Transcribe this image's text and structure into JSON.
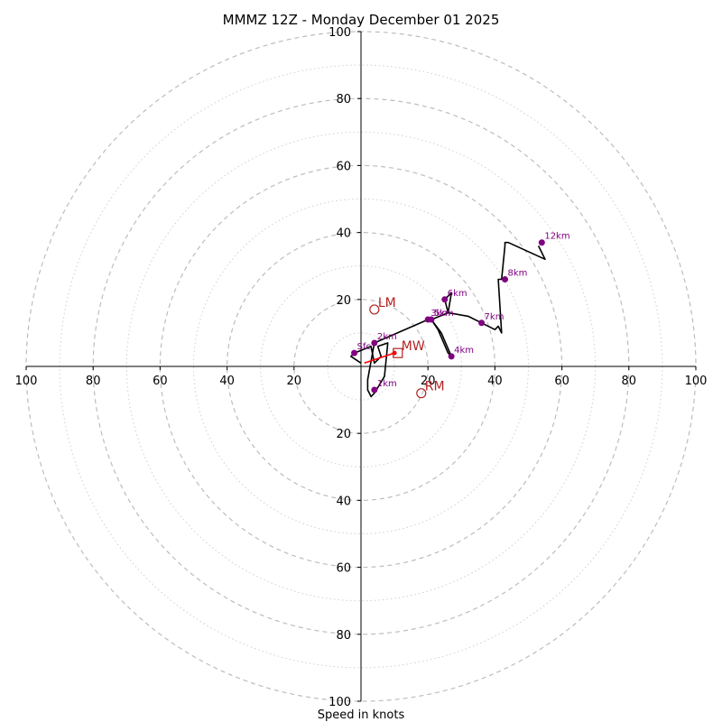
{
  "chart_data": {
    "type": "hodograph",
    "title": "MMMZ 12Z - Monday December 01 2025",
    "xlabel": "Speed in knots",
    "units": "knots",
    "max_speed": 100,
    "ring_labels": [
      "20",
      "40",
      "60",
      "80",
      "100"
    ],
    "axis_ticks": {
      "left": [
        "100",
        "80",
        "60",
        "40",
        "20"
      ],
      "right": [
        "20",
        "40",
        "60",
        "80",
        "100"
      ],
      "top": [
        "100",
        "80",
        "60",
        "40",
        "20"
      ],
      "bottom": [
        "20",
        "40",
        "60",
        "80",
        "100"
      ]
    },
    "trace": [
      [
        0,
        1
      ],
      [
        -3,
        3
      ],
      [
        -2,
        4
      ],
      [
        3,
        6
      ],
      [
        4,
        1
      ],
      [
        6,
        3
      ],
      [
        5,
        6
      ],
      [
        8,
        7
      ],
      [
        7,
        -3
      ],
      [
        4,
        -8
      ],
      [
        3,
        -9
      ],
      [
        2,
        -7
      ],
      [
        2,
        -4
      ],
      [
        4,
        7
      ],
      [
        20,
        14
      ],
      [
        21,
        14
      ],
      [
        24,
        10
      ],
      [
        27,
        3
      ],
      [
        26,
        4
      ],
      [
        23,
        11
      ],
      [
        21,
        14
      ],
      [
        26,
        16
      ],
      [
        25,
        20
      ],
      [
        27,
        22
      ],
      [
        26,
        16
      ],
      [
        32,
        15
      ],
      [
        36,
        13
      ],
      [
        40,
        11
      ],
      [
        41,
        12
      ],
      [
        42,
        10
      ],
      [
        41,
        26
      ],
      [
        42,
        26
      ],
      [
        43,
        36
      ],
      [
        43,
        37
      ],
      [
        44,
        37
      ],
      [
        55,
        32
      ],
      [
        53,
        36
      ]
    ],
    "height_points": [
      {
        "label": "Sfc",
        "u": -2,
        "v": 4
      },
      {
        "label": "1km",
        "u": 4,
        "v": -7
      },
      {
        "label": "2km",
        "u": 4,
        "v": 7
      },
      {
        "label": "3km",
        "u": 20,
        "v": 14
      },
      {
        "label": "4km",
        "u": 27,
        "v": 3
      },
      {
        "label": "5km",
        "u": 21,
        "v": 14
      },
      {
        "label": "6km",
        "u": 25,
        "v": 20
      },
      {
        "label": "7km",
        "u": 36,
        "v": 13
      },
      {
        "label": "8km",
        "u": 43,
        "v": 26
      },
      {
        "label": "12km",
        "u": 54,
        "v": 37
      }
    ],
    "storm_motion": [
      {
        "label": "LM",
        "u": 4,
        "v": 17,
        "marker": "circle"
      },
      {
        "label": "RM",
        "u": 18,
        "v": -8,
        "marker": "circle"
      },
      {
        "label": "MW",
        "u": 11,
        "v": 4,
        "marker": "square"
      }
    ],
    "mean_wind_vector": {
      "u0": 1,
      "v0": 1,
      "u1": 10,
      "v1": 4
    },
    "colors": {
      "trace": "#000000",
      "height_points": "#800080",
      "storm_motion": "#b22222",
      "vector": "#ff0000",
      "ring_major": "#bdbdbd",
      "ring_minor": "#cfcfcf"
    }
  }
}
